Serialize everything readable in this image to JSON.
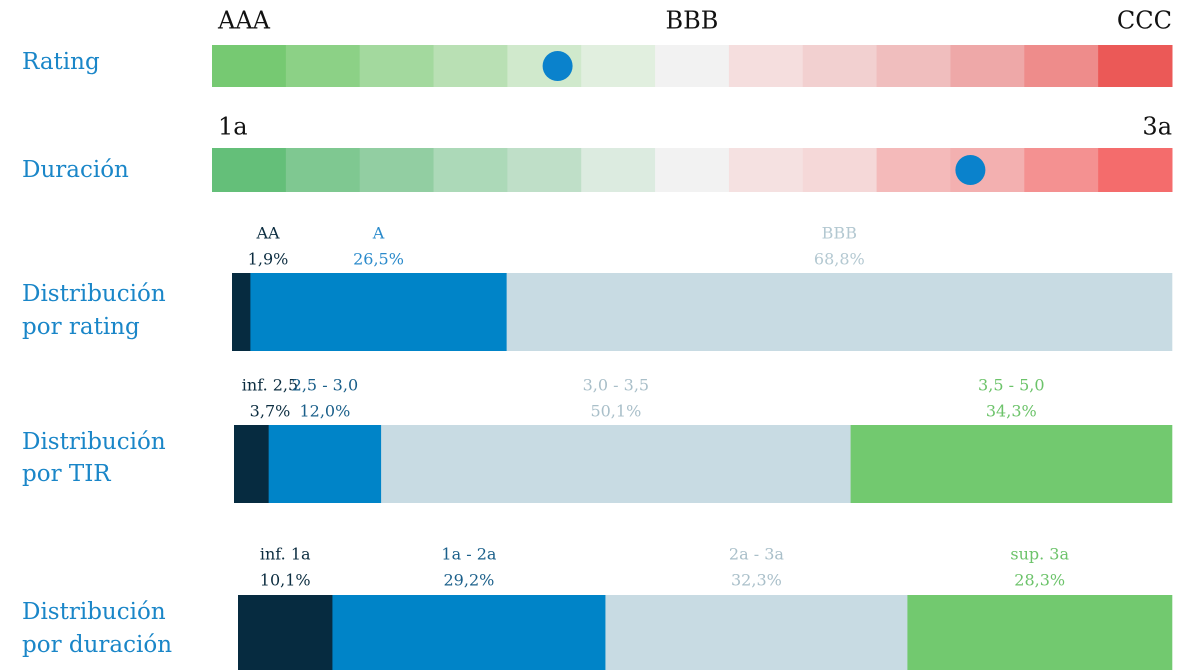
{
  "scales": [
    {
      "label": "Rating",
      "ticks": [
        "AAA",
        "BBB",
        "CCC"
      ],
      "colors": [
        "#76c972",
        "#8cd186",
        "#a3d99e",
        "#b9e0b4",
        "#d0e9cc",
        "#e1efdf",
        "#f2f2f2",
        "#f5dede",
        "#f2d0d0",
        "#f0bebe",
        "#eea8a8",
        "#ee8c8b",
        "#eb5957"
      ],
      "marker": 0.36
    },
    {
      "label": "Duración",
      "ticks": [
        "1a",
        "3a"
      ],
      "colors": [
        "#64bf79",
        "#7fc891",
        "#92cea2",
        "#acd9b8",
        "#bfdfc8",
        "#dcebe0",
        "#f2f2f2",
        "#f5e1e1",
        "#f5d8d8",
        "#f4baba",
        "#f3b0b0",
        "#f49191",
        "#f46c6c"
      ],
      "marker": 0.79
    }
  ],
  "distributions": [
    {
      "label": [
        "Distribución",
        "por rating"
      ],
      "segments": [
        {
          "name": "AA",
          "value": 1.9,
          "value_label": "1,9%",
          "color": "#062b40",
          "text_color": "#0c2d40"
        },
        {
          "name": "A",
          "value": 26.5,
          "value_label": "26,5%",
          "color": "#0084c8",
          "text_color": "#2a8acb"
        },
        {
          "name": "BBB",
          "value": 68.8,
          "value_label": "68,8%",
          "color": "#c8dbe3",
          "text_color": "#b3c8d1"
        }
      ]
    },
    {
      "label": [
        "Distribución",
        "por TIR"
      ],
      "segments": [
        {
          "name": "inf. 2,5",
          "value": 3.7,
          "value_label": "3,7%",
          "color": "#062b40",
          "text_color": "#0c2d40"
        },
        {
          "name": "2,5 - 3,0",
          "value": 12.0,
          "value_label": "12,0%",
          "color": "#0084c8",
          "text_color": "#1a5f8a"
        },
        {
          "name": "3,0 - 3,5",
          "value": 50.1,
          "value_label": "50,1%",
          "color": "#c8dbe3",
          "text_color": "#a9bfc9"
        },
        {
          "name": "3,5 - 5,0",
          "value": 34.3,
          "value_label": "34,3%",
          "color": "#72c96f",
          "text_color": "#6cc36a"
        }
      ]
    },
    {
      "label": [
        "Distribución",
        "por duración"
      ],
      "segments": [
        {
          "name": "inf. 1a",
          "value": 10.1,
          "value_label": "10,1%",
          "color": "#062b40",
          "text_color": "#0c2d40"
        },
        {
          "name": "1a - 2a",
          "value": 29.2,
          "value_label": "29,2%",
          "color": "#0084c8",
          "text_color": "#1a5f8a"
        },
        {
          "name": "2a - 3a",
          "value": 32.3,
          "value_label": "32,3%",
          "color": "#c8dbe3",
          "text_color": "#a9bfc9"
        },
        {
          "name": "sup. 3a",
          "value": 28.3,
          "value_label": "28,3%",
          "color": "#72c96f",
          "text_color": "#6cc36a"
        }
      ]
    }
  ]
}
